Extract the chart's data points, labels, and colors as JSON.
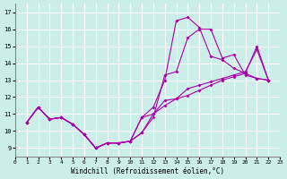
{
  "xlabel": "Windchill (Refroidissement éolien,°C)",
  "background_color": "#cceee8",
  "line_color": "#aa00aa",
  "x_ticks": [
    0,
    1,
    2,
    3,
    4,
    5,
    6,
    7,
    8,
    9,
    10,
    11,
    12,
    13,
    14,
    15,
    16,
    17,
    18,
    19,
    20,
    21,
    22,
    23
  ],
  "y_ticks": [
    9,
    10,
    11,
    12,
    13,
    14,
    15,
    16,
    17
  ],
  "xlim": [
    0,
    23
  ],
  "ylim": [
    8.5,
    17.5
  ],
  "curves": [
    [
      10.5,
      11.4,
      10.7,
      10.8,
      10.4,
      9.8,
      9.0,
      9.3,
      9.3,
      9.4,
      9.9,
      10.8,
      13.3,
      13.5,
      15.5,
      16.0,
      16.0,
      14.3,
      14.5,
      13.3,
      13.1,
      13.0
    ],
    [
      10.5,
      11.4,
      10.7,
      10.8,
      10.4,
      9.8,
      9.0,
      9.3,
      9.3,
      9.4,
      10.8,
      11.4,
      13.0,
      16.5,
      16.7,
      16.1,
      14.4,
      14.2,
      13.7,
      13.4,
      13.1,
      13.0
    ],
    [
      10.5,
      11.4,
      10.7,
      10.8,
      10.4,
      9.8,
      9.0,
      9.3,
      9.3,
      9.4,
      9.9,
      11.0,
      11.8,
      11.9,
      12.5,
      12.7,
      12.9,
      13.1,
      13.3,
      13.5,
      14.8,
      13.0
    ],
    [
      10.5,
      11.4,
      10.7,
      10.8,
      10.4,
      9.8,
      9.0,
      9.3,
      9.3,
      9.4,
      10.8,
      11.0,
      11.5,
      11.9,
      12.1,
      12.4,
      12.7,
      13.0,
      13.2,
      13.4,
      15.0,
      13.0
    ]
  ]
}
